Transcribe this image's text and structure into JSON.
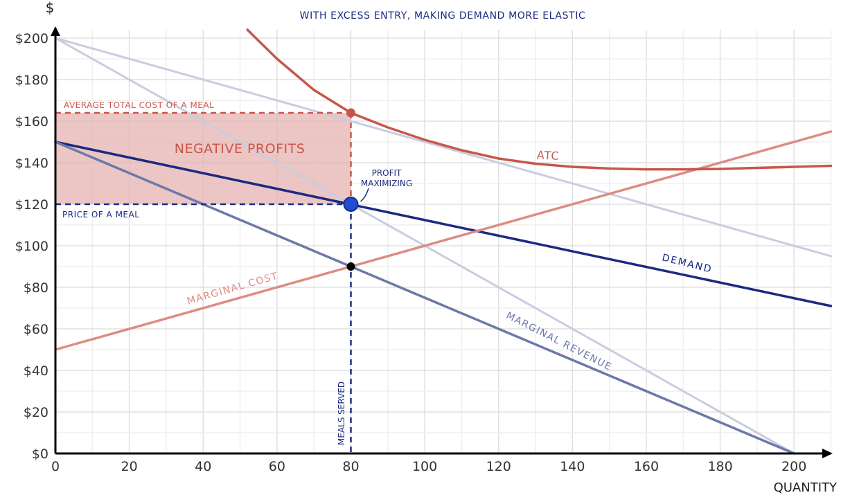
{
  "chart_data": {
    "type": "line",
    "title": "WITH EXCESS ENTRY, MAKING DEMAND MORE ELASTIC",
    "ylabel": "$",
    "xlabel": "QUANTITY",
    "xlim": [
      0,
      210
    ],
    "ylim": [
      0,
      200
    ],
    "x_ticks": [
      {
        "value": 0,
        "label": "0"
      },
      {
        "value": 20,
        "label": "20"
      },
      {
        "value": 40,
        "label": "40"
      },
      {
        "value": 60,
        "label": "60"
      },
      {
        "value": 80,
        "label": "80"
      },
      {
        "value": 100,
        "label": "100"
      },
      {
        "value": 120,
        "label": "120"
      },
      {
        "value": 140,
        "label": "140"
      },
      {
        "value": 160,
        "label": "160"
      },
      {
        "value": 180,
        "label": "180"
      },
      {
        "value": 200,
        "label": "200"
      }
    ],
    "y_ticks": [
      {
        "value": 0,
        "label": "$0"
      },
      {
        "value": 20,
        "label": "$20"
      },
      {
        "value": 40,
        "label": "$40"
      },
      {
        "value": 60,
        "label": "$60"
      },
      {
        "value": 80,
        "label": "$80"
      },
      {
        "value": 100,
        "label": "$100"
      },
      {
        "value": 120,
        "label": "$120"
      },
      {
        "value": 140,
        "label": "$140"
      },
      {
        "value": 160,
        "label": "$160"
      },
      {
        "value": 180,
        "label": "$180"
      },
      {
        "value": 200,
        "label": "$200"
      }
    ],
    "grid": true,
    "series": [
      {
        "name": "",
        "color": "#c8cde0",
        "points": [
          [
            0,
            200
          ],
          [
            210,
            95
          ]
        ]
      },
      {
        "name": "",
        "color": "#c8cde0",
        "points": [
          [
            0,
            200
          ],
          [
            200,
            0
          ]
        ]
      },
      {
        "name": "DEMAND",
        "color": "#1b2a80",
        "points": [
          [
            0,
            150
          ],
          [
            210,
            71
          ]
        ]
      },
      {
        "name": "MARGINAL REVENUE",
        "color": "#6b79a8",
        "points": [
          [
            0,
            150
          ],
          [
            200,
            0
          ]
        ]
      },
      {
        "name": "MARGINAL COST",
        "color": "#dc8c84",
        "points": [
          [
            0,
            50
          ],
          [
            210,
            155
          ]
        ]
      },
      {
        "name": "ATC",
        "color": "#c8564a",
        "points": [
          [
            52,
            204
          ],
          [
            60,
            190
          ],
          [
            70,
            175
          ],
          [
            80,
            164
          ],
          [
            90,
            157
          ],
          [
            100,
            151
          ],
          [
            110,
            146
          ],
          [
            120,
            142
          ],
          [
            130,
            139.5
          ],
          [
            140,
            138
          ],
          [
            150,
            137.2
          ],
          [
            160,
            136.8
          ],
          [
            170,
            136.8
          ],
          [
            180,
            137
          ],
          [
            190,
            137.5
          ],
          [
            200,
            138
          ],
          [
            210,
            138.5
          ]
        ]
      }
    ],
    "points": [
      {
        "name": "atc-point",
        "x": 80,
        "y": 164,
        "color": "#c8564a"
      },
      {
        "name": "profit-maximizing-point",
        "x": 80,
        "y": 120,
        "color": "#1f4fd0"
      },
      {
        "name": "mr-mc-intersection-point",
        "x": 80,
        "y": 90,
        "color": "#000000"
      }
    ],
    "shaded_region": {
      "label": "NEGATIVE PROFITS",
      "x": [
        0,
        80
      ],
      "y": [
        120,
        164
      ],
      "color": "#e6b3b0"
    },
    "annotations": {
      "atc_level": "AVERAGE TOTAL COST OF A MEAL",
      "price_level": "PRICE OF A MEAL",
      "profit_max_line1": "PROFIT",
      "profit_max_line2": "MAXIMIZING",
      "meals_served": "MEALS SERVED",
      "negative_profits": "NEGATIVE PROFITS",
      "atc": "ATC",
      "demand": "DEMAND",
      "marginal_revenue": "MARGINAL REVENUE",
      "marginal_cost": "MARGINAL COST"
    }
  }
}
